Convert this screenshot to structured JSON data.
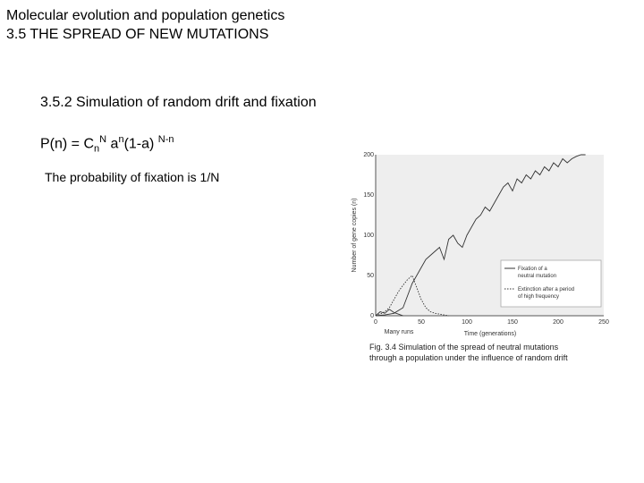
{
  "header": {
    "line1": "Molecular evolution and population genetics",
    "line2": "3.5 THE SPREAD OF NEW MUTATIONS"
  },
  "section": {
    "subtitle": "3.5.2 Simulation of random drift and fixation",
    "formula": {
      "lhs": "P(n) = C",
      "sub_n": "n",
      "sup_N": "N",
      "a": " a",
      "sup_n": "n",
      "mid": "(1-a) ",
      "sup_Nn": "N-n"
    },
    "probability": "The probability of fixation is 1/N"
  },
  "figure": {
    "caption_line1": "Fig. 3.4 Simulation of the spread of neutral mutations",
    "caption_line2": "through a population under the influence of random drift"
  },
  "chart_data": {
    "type": "line",
    "xlabel": "Time (generations)",
    "ylabel": "Number of gene copies (n)",
    "xlim": [
      0,
      250
    ],
    "ylim": [
      0,
      200
    ],
    "xticks": [
      "0",
      "50",
      "100",
      "150",
      "200",
      "250"
    ],
    "yticks": [
      "0",
      "50",
      "100",
      "150",
      "200"
    ],
    "many_runs_label": "Many runs",
    "legend": {
      "fixation_line1": "Fixation of a",
      "fixation_line2": "neutral mutation",
      "extinction_line1": "Extinction after a period",
      "extinction_line2": "of high frequency"
    },
    "series": [
      {
        "name": "Fixation of a neutral mutation",
        "style": "solid",
        "x": [
          0,
          10,
          20,
          30,
          35,
          40,
          45,
          50,
          55,
          60,
          65,
          70,
          75,
          80,
          85,
          90,
          95,
          100,
          105,
          110,
          115,
          120,
          125,
          130,
          135,
          140,
          145,
          150,
          155,
          160,
          165,
          170,
          175,
          180,
          185,
          190,
          195,
          200,
          205,
          210,
          215,
          220,
          225,
          230
        ],
        "y": [
          0,
          1,
          3,
          10,
          25,
          40,
          50,
          60,
          70,
          75,
          80,
          85,
          70,
          95,
          100,
          90,
          85,
          100,
          110,
          120,
          125,
          135,
          130,
          140,
          150,
          160,
          165,
          155,
          170,
          165,
          175,
          170,
          180,
          175,
          185,
          180,
          190,
          185,
          195,
          190,
          195,
          198,
          200,
          200
        ]
      },
      {
        "name": "Extinction after a period of high frequency",
        "style": "dotted",
        "x": [
          0,
          5,
          10,
          15,
          20,
          25,
          30,
          35,
          40,
          45,
          50,
          55,
          60,
          65,
          70,
          75,
          80
        ],
        "y": [
          0,
          2,
          5,
          10,
          20,
          30,
          38,
          45,
          50,
          35,
          20,
          10,
          5,
          3,
          2,
          1,
          0
        ]
      },
      {
        "name": "Many runs",
        "style": "solid",
        "x": [
          0,
          5,
          10,
          15,
          20,
          25,
          30
        ],
        "y": [
          0,
          5,
          3,
          8,
          4,
          2,
          0
        ]
      }
    ]
  }
}
